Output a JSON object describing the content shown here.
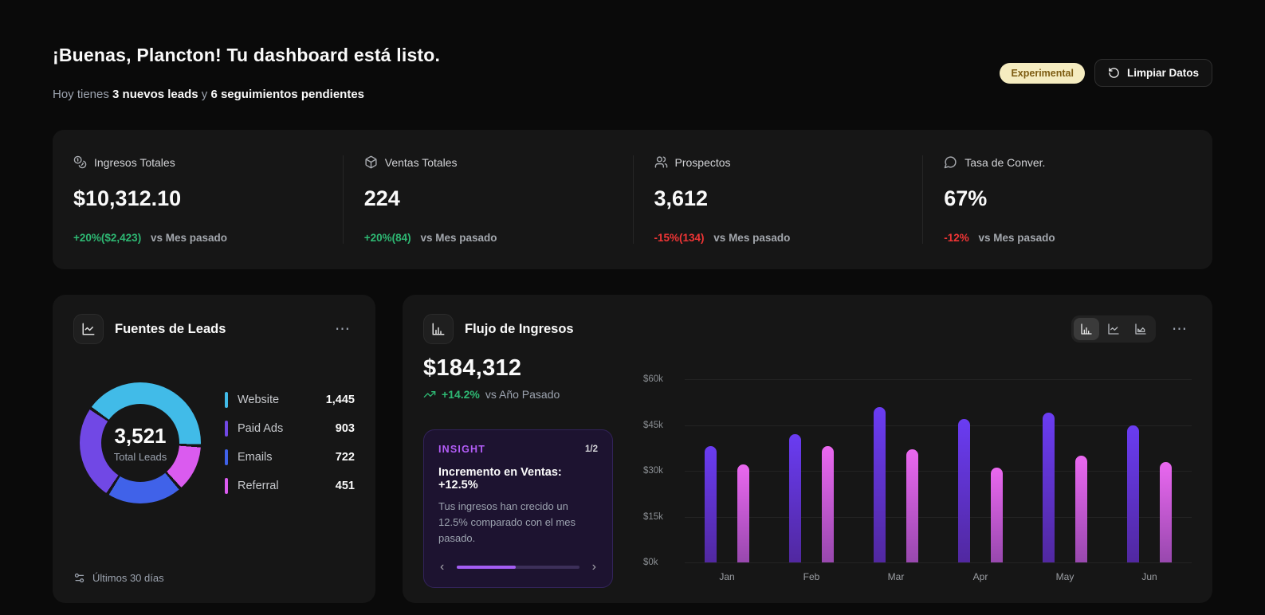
{
  "icons": {
    "more_options": "⋯",
    "chevron_left": "‹",
    "chevron_right": "›"
  },
  "header": {
    "title": "¡Buenas, Plancton! Tu dashboard está listo.",
    "subtitle_prefix": "Hoy tienes ",
    "subtitle_highlight1": "3 nuevos leads",
    "subtitle_connector": " y ",
    "subtitle_highlight2": "6 seguimientos pendientes",
    "badge_label": "Experimental",
    "clear_data_label": "Limpiar Datos"
  },
  "stats": [
    {
      "icon": "coins-icon",
      "label": "Ingresos Totales",
      "value": "$10,312.10",
      "change": "+20%($2,423)",
      "change_direction": "up",
      "compare": "vs Mes pasado"
    },
    {
      "icon": "package-icon",
      "label": "Ventas Totales",
      "value": "224",
      "change": "+20%(84)",
      "change_direction": "up",
      "compare": "vs Mes pasado"
    },
    {
      "icon": "users-icon",
      "label": "Prospectos",
      "value": "3,612",
      "change": "-15%(134)",
      "change_direction": "down",
      "compare": "vs Mes pasado"
    },
    {
      "icon": "chat-bubble-icon",
      "label": "Tasa de Conver.",
      "value": "67%",
      "change": "-12%",
      "change_direction": "down",
      "compare": "vs Mes pasado"
    }
  ],
  "leads_card": {
    "title": "Fuentes de Leads",
    "footer": "Últimos 30 días"
  },
  "revenue_card": {
    "title": "Flujo de Ingresos",
    "total": "$184,312",
    "change": "+14.2%",
    "compare": "vs Año Pasado",
    "toolbar": {
      "options": [
        "bar",
        "line",
        "area"
      ],
      "active": "bar"
    },
    "insight": {
      "label": "INSIGHT",
      "pagination": "1/2",
      "title": "Incremento en Ventas: +12.5%",
      "body": "Tus ingresos han crecido un 12.5% comparado con el mes pasado.",
      "progress_percent": 48
    }
  },
  "chart_data": [
    {
      "type": "pie",
      "title": "Fuentes de Leads",
      "center_total": "3,521",
      "center_label": "Total Leads",
      "segments": [
        {
          "label": "Website",
          "value": 1445,
          "value_label": "1,445",
          "color": "#41bbe8"
        },
        {
          "label": "Paid Ads",
          "value": 903,
          "value_label": "903",
          "color": "#7148e5"
        },
        {
          "label": "Emails",
          "value": 722,
          "value_label": "722",
          "color": "#4062e9"
        },
        {
          "label": "Referral",
          "value": 451,
          "value_label": "451",
          "color": "#da5bef"
        }
      ],
      "ring_order": [
        0,
        3,
        2,
        1
      ],
      "start_angle_deg": -55,
      "gap_deg": 3,
      "gap_color": "#161616",
      "legend_position": "right",
      "subtitle_period": "Últimos 30 días"
    },
    {
      "type": "bar",
      "title": "Flujo de Ingresos",
      "categories": [
        "Jan",
        "Feb",
        "Mar",
        "Apr",
        "May",
        "Jun"
      ],
      "series": [
        {
          "name": "series_a",
          "color_top": "#6a3cf2",
          "color_bottom": "#5128a0",
          "values_k": [
            38,
            42,
            51,
            47,
            49,
            45
          ]
        },
        {
          "name": "series_b",
          "color_top": "#ea68f0",
          "color_bottom": "#9848ae",
          "values_k": [
            32,
            38,
            37,
            31,
            35,
            33
          ]
        }
      ],
      "y_ticks_top_to_bottom": [
        "$60k",
        "$45k",
        "$30k",
        "$15k",
        "$0k"
      ],
      "y_max_k": 60,
      "unit": "USD thousands",
      "grid": true,
      "legend": "none"
    }
  ]
}
